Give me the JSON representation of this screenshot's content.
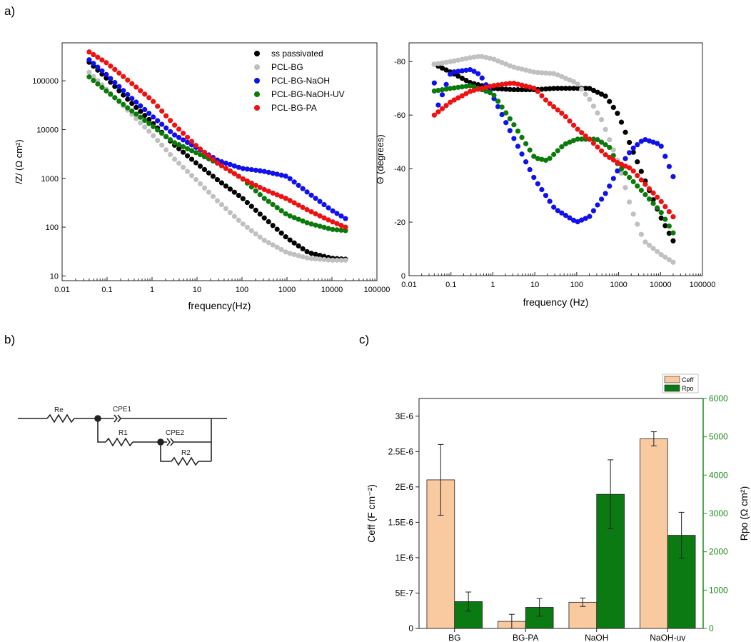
{
  "panel_labels": {
    "a": "a)",
    "b": "b)",
    "c": "c)"
  },
  "colors": {
    "ss_passivated": "#000000",
    "pcl_bg": "#c0c0c0",
    "pcl_bg_naoh": "#1010ee",
    "pcl_bg_naoh_uv": "#0a7a0a",
    "pcl_bg_pa": "#ee1111",
    "ceff_bar": "#f9c9a0",
    "rpo_bar": "#0b7a12",
    "rpo_axis": "#1a8a1a"
  },
  "circuit": {
    "labels": {
      "re": "Re",
      "cpe1": "CPE1",
      "r1": "R1",
      "cpe2": "CPE2",
      "r2": "R2"
    }
  },
  "chart_data": [
    {
      "id": "bode-magnitude",
      "type": "scatter",
      "xscale": "log",
      "yscale": "log",
      "xlabel": "frequency(Hz)",
      "ylabel": "/Z/ (Ω cm²)",
      "xlim": [
        0.01,
        100000
      ],
      "ylim": [
        8,
        600000
      ],
      "xticks": [
        0.01,
        0.1,
        1,
        10,
        100,
        1000,
        10000,
        100000
      ],
      "xtick_labels": [
        "0.01",
        "0.1",
        "1",
        "10",
        "100",
        "1000",
        "10000",
        "100000"
      ],
      "yticks": [
        10,
        100,
        1000,
        10000,
        100000
      ],
      "ytick_labels": [
        "10",
        "100",
        "1000",
        "10000",
        "100000"
      ],
      "legend_position": "top-right",
      "series": [
        {
          "name": "ss passivated",
          "color_key": "ss_passivated",
          "points": [
            [
              0.04,
              240000
            ],
            [
              0.1,
              110000
            ],
            [
              0.3,
              40000
            ],
            [
              1,
              14000
            ],
            [
              3,
              5000
            ],
            [
              10,
              2000
            ],
            [
              30,
              900
            ],
            [
              100,
              400
            ],
            [
              300,
              160
            ],
            [
              1000,
              60
            ],
            [
              3000,
              30
            ],
            [
              10000,
              23
            ],
            [
              20000,
              22
            ]
          ]
        },
        {
          "name": "PCL-BG",
          "color_key": "pcl_bg",
          "points": [
            [
              0.04,
              150000
            ],
            [
              0.1,
              65000
            ],
            [
              0.3,
              24000
            ],
            [
              1,
              8000
            ],
            [
              3,
              2600
            ],
            [
              10,
              900
            ],
            [
              30,
              330
            ],
            [
              100,
              120
            ],
            [
              300,
              55
            ],
            [
              1000,
              30
            ],
            [
              3000,
              23
            ],
            [
              10000,
              21
            ],
            [
              20000,
              21
            ]
          ]
        },
        {
          "name": "PCL-BG-NaOH",
          "color_key": "pcl_bg_naoh",
          "points": [
            [
              0.04,
              270000
            ],
            [
              0.1,
              130000
            ],
            [
              0.3,
              50000
            ],
            [
              1,
              19000
            ],
            [
              3,
              8000
            ],
            [
              10,
              4200
            ],
            [
              30,
              2300
            ],
            [
              100,
              1600
            ],
            [
              300,
              1400
            ],
            [
              1000,
              1100
            ],
            [
              3000,
              500
            ],
            [
              10000,
              220
            ],
            [
              20000,
              150
            ]
          ]
        },
        {
          "name": "PCL-BG-NaOH-UV",
          "color_key": "pcl_bg_naoh_uv",
          "points": [
            [
              0.04,
              120000
            ],
            [
              0.1,
              60000
            ],
            [
              0.3,
              27000
            ],
            [
              1,
              12000
            ],
            [
              3,
              5500
            ],
            [
              10,
              3300
            ],
            [
              30,
              2000
            ],
            [
              100,
              1000
            ],
            [
              300,
              400
            ],
            [
              1000,
              180
            ],
            [
              3000,
              120
            ],
            [
              10000,
              90
            ],
            [
              20000,
              85
            ]
          ]
        },
        {
          "name": "PCL-BG-PA",
          "color_key": "pcl_bg_pa",
          "points": [
            [
              0.04,
              390000
            ],
            [
              0.1,
              230000
            ],
            [
              0.3,
              100000
            ],
            [
              1,
              40000
            ],
            [
              3,
              13000
            ],
            [
              10,
              4500
            ],
            [
              30,
              2000
            ],
            [
              100,
              1000
            ],
            [
              300,
              600
            ],
            [
              1000,
              380
            ],
            [
              3000,
              220
            ],
            [
              10000,
              130
            ],
            [
              20000,
              100
            ]
          ]
        }
      ]
    },
    {
      "id": "bode-phase",
      "type": "scatter",
      "xscale": "log",
      "xlabel": "frequency (Hz)",
      "ylabel": "Θ (degrees)",
      "xlim": [
        0.01,
        100000
      ],
      "ylim": [
        0,
        -87
      ],
      "xticks": [
        0.01,
        0.1,
        1,
        10,
        100,
        1000,
        10000,
        100000
      ],
      "xtick_labels": [
        "0.01",
        "0.1",
        "1",
        "10",
        "100",
        "1000",
        "10000",
        "100000"
      ],
      "yticks": [
        0,
        -20,
        -40,
        -60,
        -80
      ],
      "ytick_labels": [
        "0",
        "-20",
        "-40",
        "-60",
        "-80"
      ],
      "series": [
        {
          "name": "ss passivated",
          "color_key": "ss_passivated",
          "points": [
            [
              0.04,
              -79
            ],
            [
              0.1,
              -76
            ],
            [
              0.3,
              -72
            ],
            [
              1,
              -70
            ],
            [
              3,
              -69.5
            ],
            [
              10,
              -69.5
            ],
            [
              30,
              -70
            ],
            [
              100,
              -70
            ],
            [
              200,
              -70
            ],
            [
              500,
              -67
            ],
            [
              1000,
              -60
            ],
            [
              2000,
              -48
            ],
            [
              5000,
              -33
            ],
            [
              10000,
              -22
            ],
            [
              20000,
              -13
            ]
          ]
        },
        {
          "name": "PCL-BG",
          "color_key": "pcl_bg",
          "points": [
            [
              0.04,
              -79
            ],
            [
              0.1,
              -80
            ],
            [
              0.3,
              -81.5
            ],
            [
              0.5,
              -82
            ],
            [
              1,
              -81
            ],
            [
              3,
              -78
            ],
            [
              10,
              -76
            ],
            [
              30,
              -75.5
            ],
            [
              100,
              -72
            ],
            [
              200,
              -66
            ],
            [
              400,
              -58
            ],
            [
              1000,
              -42
            ],
            [
              2000,
              -25
            ],
            [
              4000,
              -13
            ],
            [
              10000,
              -8
            ],
            [
              20000,
              -5
            ]
          ]
        },
        {
          "name": "PCL-BG-NaOH",
          "color_key": "pcl_bg_naoh",
          "points": [
            [
              0.04,
              -72
            ],
            [
              0.045,
              -62
            ],
            [
              0.1,
              -76
            ],
            [
              0.3,
              -77
            ],
            [
              0.5,
              -75
            ],
            [
              1,
              -67
            ],
            [
              3,
              -52
            ],
            [
              10,
              -36
            ],
            [
              30,
              -25
            ],
            [
              100,
              -20
            ],
            [
              200,
              -22
            ],
            [
              500,
              -31
            ],
            [
              1000,
              -40
            ],
            [
              2000,
              -47
            ],
            [
              4000,
              -51
            ],
            [
              10000,
              -49
            ],
            [
              20000,
              -37
            ]
          ]
        },
        {
          "name": "PCL-BG-NaOH-UV",
          "color_key": "pcl_bg_naoh_uv",
          "points": [
            [
              0.04,
              -69
            ],
            [
              0.1,
              -70
            ],
            [
              0.3,
              -71
            ],
            [
              1,
              -68
            ],
            [
              3,
              -57
            ],
            [
              10,
              -44
            ],
            [
              20,
              -43
            ],
            [
              50,
              -49
            ],
            [
              100,
              -51
            ],
            [
              300,
              -51
            ],
            [
              600,
              -48
            ],
            [
              1000,
              -41
            ],
            [
              3000,
              -33
            ],
            [
              10000,
              -24
            ],
            [
              20000,
              -16
            ]
          ]
        },
        {
          "name": "PCL-BG-PA",
          "color_key": "pcl_bg_pa",
          "points": [
            [
              0.04,
              -60
            ],
            [
              0.1,
              -65
            ],
            [
              0.3,
              -69
            ],
            [
              1,
              -71
            ],
            [
              3,
              -72
            ],
            [
              10,
              -70
            ],
            [
              20,
              -65
            ],
            [
              50,
              -60
            ],
            [
              100,
              -55
            ],
            [
              200,
              -51
            ],
            [
              500,
              -45
            ],
            [
              1000,
              -42
            ],
            [
              2000,
              -40
            ],
            [
              5000,
              -33
            ],
            [
              10000,
              -28
            ],
            [
              20000,
              -22
            ]
          ]
        }
      ]
    },
    {
      "id": "ceff-rpo-bars",
      "type": "bar",
      "categories": [
        "BG",
        "BG-PA",
        "NaOH",
        "NaOH-uv"
      ],
      "legend_position": "top-right",
      "series": [
        {
          "name": "Ceff",
          "axis": "left",
          "color_key": "ceff_bar",
          "values": [
            2.1e-06,
            1e-07,
            3.7e-07,
            2.68e-06
          ],
          "errors": [
            5e-07,
            1e-07,
            6e-08,
            1e-07
          ]
        },
        {
          "name": "Rpo",
          "axis": "right",
          "color_key": "rpo_bar",
          "values": [
            700,
            550,
            3500,
            2430
          ],
          "errors": [
            250,
            230,
            900,
            600
          ]
        }
      ],
      "left_axis": {
        "label": "Ceff (F cm⁻²)",
        "lim": [
          0,
          3.25e-06
        ],
        "ticks": [
          0,
          5e-07,
          1e-06,
          1.5e-06,
          2e-06,
          2.5e-06,
          3e-06
        ],
        "tick_labels": [
          "0",
          "5E-7",
          "1E-6",
          "1.5E-6",
          "2E-6",
          "2.5E-6",
          "3E-6"
        ]
      },
      "right_axis": {
        "label": "Rpo (Ω cm²)",
        "lim": [
          0,
          6000
        ],
        "ticks": [
          0,
          1000,
          2000,
          3000,
          4000,
          5000,
          6000
        ],
        "tick_labels": [
          "0",
          "1000",
          "2000",
          "3000",
          "4000",
          "5000",
          "6000"
        ]
      }
    }
  ]
}
